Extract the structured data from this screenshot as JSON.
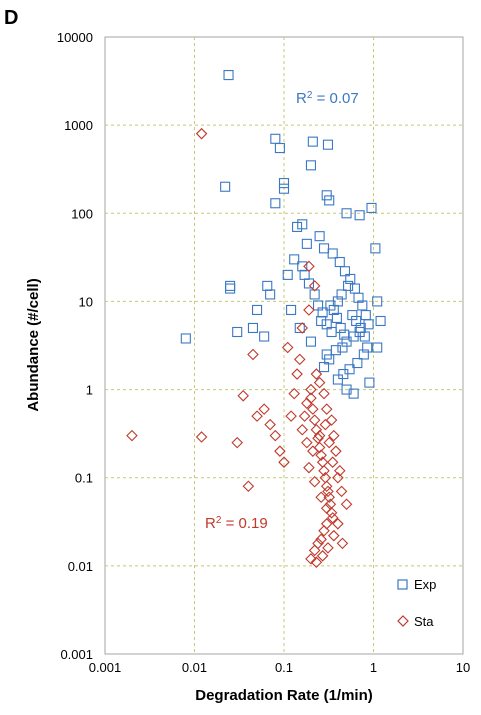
{
  "panel_label": "D",
  "chart_data": {
    "type": "scatter",
    "xlabel": "Degradation Rate (1/min)",
    "ylabel": "Abundance (#/cell)",
    "x_scale": "log",
    "y_scale": "log",
    "xlim": [
      0.001,
      10
    ],
    "ylim": [
      0.001,
      10000
    ],
    "x_ticks": [
      "0.001",
      "0.01",
      "0.1",
      "1",
      "10"
    ],
    "y_ticks": [
      "0.001",
      "0.01",
      "0.1",
      "1",
      "10",
      "100",
      "1000",
      "10000"
    ],
    "grid": true,
    "legend_position": "bottom-right",
    "annotations": [
      {
        "series": "Exp",
        "base": "R",
        "sup": "2",
        "rest": " = 0.07"
      },
      {
        "series": "Sta",
        "base": "R",
        "sup": "2",
        "rest": " = 0.19"
      }
    ],
    "series": [
      {
        "name": "Exp",
        "marker": "square",
        "color": "#3b78c4",
        "points": [
          [
            0.024,
            3700
          ],
          [
            0.08,
            700
          ],
          [
            0.21,
            650
          ],
          [
            0.31,
            600
          ],
          [
            0.09,
            550
          ],
          [
            0.2,
            350
          ],
          [
            0.022,
            200
          ],
          [
            0.1,
            220
          ],
          [
            0.1,
            190
          ],
          [
            0.95,
            115
          ],
          [
            0.3,
            160
          ],
          [
            0.32,
            140
          ],
          [
            0.08,
            130
          ],
          [
            0.5,
            100
          ],
          [
            0.7,
            95
          ],
          [
            0.14,
            70
          ],
          [
            0.16,
            75
          ],
          [
            1.05,
            40
          ],
          [
            0.008,
            3.8
          ],
          [
            0.025,
            15
          ],
          [
            0.025,
            14
          ],
          [
            0.03,
            4.5
          ],
          [
            0.05,
            8
          ],
          [
            0.07,
            12
          ],
          [
            0.065,
            15
          ],
          [
            0.06,
            4
          ],
          [
            0.045,
            5
          ],
          [
            1.1,
            10
          ],
          [
            1.2,
            6
          ],
          [
            1.1,
            3
          ],
          [
            0.9,
            1.2
          ],
          [
            0.5,
            1.0
          ],
          [
            0.6,
            0.9
          ],
          [
            0.4,
            1.3
          ],
          [
            0.3,
            2.5
          ],
          [
            0.2,
            3.5
          ],
          [
            0.15,
            5
          ],
          [
            0.12,
            8
          ],
          [
            0.11,
            20
          ],
          [
            0.13,
            30
          ],
          [
            0.18,
            45
          ],
          [
            0.25,
            55
          ],
          [
            0.28,
            40
          ],
          [
            0.35,
            35
          ],
          [
            0.42,
            28
          ],
          [
            0.48,
            22
          ],
          [
            0.55,
            18
          ],
          [
            0.62,
            14
          ],
          [
            0.68,
            11
          ],
          [
            0.75,
            9
          ],
          [
            0.82,
            7
          ],
          [
            0.88,
            5.5
          ],
          [
            0.7,
            4.5
          ],
          [
            0.6,
            4
          ],
          [
            0.5,
            3.5
          ],
          [
            0.45,
            3
          ],
          [
            0.38,
            2.8
          ],
          [
            0.32,
            2.2
          ],
          [
            0.28,
            1.8
          ],
          [
            0.26,
            6
          ],
          [
            0.24,
            9
          ],
          [
            0.22,
            12
          ],
          [
            0.19,
            16
          ],
          [
            0.17,
            20
          ],
          [
            0.16,
            25
          ],
          [
            0.36,
            8
          ],
          [
            0.4,
            10
          ],
          [
            0.44,
            12
          ],
          [
            0.52,
            15
          ],
          [
            0.58,
            7
          ],
          [
            0.64,
            6
          ],
          [
            0.72,
            5
          ],
          [
            0.8,
            4
          ],
          [
            0.85,
            3
          ],
          [
            0.78,
            2.5
          ],
          [
            0.66,
            2
          ],
          [
            0.54,
            1.7
          ],
          [
            0.46,
            1.5
          ],
          [
            0.34,
            4.5
          ],
          [
            0.3,
            5.5
          ],
          [
            0.27,
            7.5
          ],
          [
            0.33,
            9
          ],
          [
            0.39,
            6.5
          ],
          [
            0.43,
            5
          ],
          [
            0.47,
            4.2
          ]
        ]
      },
      {
        "name": "Sta",
        "marker": "diamond",
        "color": "#c0392b",
        "points": [
          [
            0.012,
            800
          ],
          [
            0.002,
            0.3
          ],
          [
            0.012,
            0.29
          ],
          [
            0.03,
            0.25
          ],
          [
            0.04,
            0.08
          ],
          [
            0.035,
            0.85
          ],
          [
            0.05,
            0.5
          ],
          [
            0.045,
            2.5
          ],
          [
            0.06,
            0.6
          ],
          [
            0.07,
            0.4
          ],
          [
            0.08,
            0.3
          ],
          [
            0.09,
            0.2
          ],
          [
            0.1,
            0.15
          ],
          [
            0.12,
            0.5
          ],
          [
            0.13,
            0.9
          ],
          [
            0.14,
            1.5
          ],
          [
            0.15,
            2.2
          ],
          [
            0.11,
            3.0
          ],
          [
            0.16,
            5
          ],
          [
            0.19,
            8
          ],
          [
            0.22,
            15
          ],
          [
            0.19,
            25
          ],
          [
            0.2,
            0.8
          ],
          [
            0.21,
            0.6
          ],
          [
            0.22,
            0.45
          ],
          [
            0.23,
            0.35
          ],
          [
            0.24,
            0.28
          ],
          [
            0.25,
            0.22
          ],
          [
            0.26,
            0.18
          ],
          [
            0.27,
            0.15
          ],
          [
            0.28,
            0.12
          ],
          [
            0.29,
            0.1
          ],
          [
            0.3,
            0.08
          ],
          [
            0.31,
            0.07
          ],
          [
            0.32,
            0.06
          ],
          [
            0.33,
            0.05
          ],
          [
            0.34,
            0.04
          ],
          [
            0.35,
            0.035
          ],
          [
            0.3,
            0.03
          ],
          [
            0.28,
            0.025
          ],
          [
            0.26,
            0.02
          ],
          [
            0.24,
            0.018
          ],
          [
            0.22,
            0.015
          ],
          [
            0.2,
            0.012
          ],
          [
            0.23,
            0.011
          ],
          [
            0.27,
            0.013
          ],
          [
            0.31,
            0.016
          ],
          [
            0.36,
            0.022
          ],
          [
            0.4,
            0.03
          ],
          [
            0.45,
            0.018
          ],
          [
            0.5,
            0.05
          ],
          [
            0.42,
            0.12
          ],
          [
            0.38,
            0.2
          ],
          [
            0.36,
            0.3
          ],
          [
            0.34,
            0.45
          ],
          [
            0.3,
            0.6
          ],
          [
            0.28,
            0.9
          ],
          [
            0.25,
            1.2
          ],
          [
            0.23,
            1.5
          ],
          [
            0.2,
            1.0
          ],
          [
            0.18,
            0.7
          ],
          [
            0.17,
            0.5
          ],
          [
            0.16,
            0.35
          ],
          [
            0.18,
            0.25
          ],
          [
            0.21,
            0.2
          ],
          [
            0.25,
            0.3
          ],
          [
            0.29,
            0.4
          ],
          [
            0.32,
            0.25
          ],
          [
            0.35,
            0.15
          ],
          [
            0.4,
            0.1
          ],
          [
            0.44,
            0.07
          ],
          [
            0.19,
            0.13
          ],
          [
            0.22,
            0.09
          ],
          [
            0.26,
            0.06
          ],
          [
            0.3,
            0.045
          ]
        ]
      }
    ]
  }
}
